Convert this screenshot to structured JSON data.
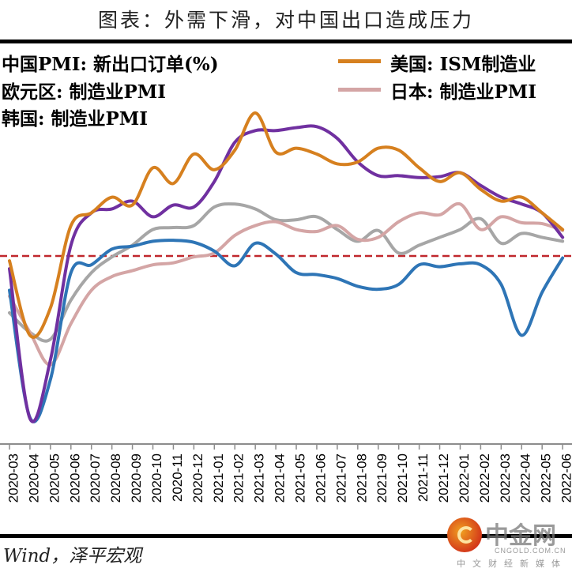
{
  "title": "图表：外需下滑，对中国出口造成压力",
  "source": "Wind，泽平宏观",
  "watermark": {
    "name": "中金网",
    "domain": "CNGOLD.COM.CN",
    "tagline": "中文财经新媒体"
  },
  "chart_data": {
    "type": "line",
    "title": "图表：外需下滑，对中国出口造成压力",
    "xlabel": "",
    "ylabel": "",
    "ylim": [
      30,
      70
    ],
    "grid": false,
    "legend_position": "top",
    "reference_line": {
      "value": 50,
      "style": "dashed",
      "color": "#c0272d"
    },
    "x": [
      "2020-03",
      "2020-04",
      "2020-05",
      "2020-06",
      "2020-07",
      "2020-08",
      "2020-09",
      "2020-10",
      "2020-11",
      "2020-12",
      "2021-01",
      "2021-02",
      "2021-03",
      "2021-04",
      "2021-05",
      "2021-06",
      "2021-07",
      "2021-08",
      "2021-09",
      "2021-10",
      "2021-11",
      "2021-12",
      "2022-01",
      "2022-02",
      "2022-03",
      "2022-04",
      "2022-05",
      "2022-06"
    ],
    "series": [
      {
        "name": "中国PMI: 新出口订单(%)",
        "color": "#2e75b6",
        "values": [
          46.5,
          33.5,
          37.4,
          48.3,
          49.1,
          50.7,
          51.0,
          51.5,
          51.6,
          51.4,
          50.5,
          49.0,
          51.3,
          50.2,
          48.3,
          48.1,
          47.7,
          46.9,
          46.6,
          47.1,
          49.1,
          48.9,
          49.2,
          49.1,
          47.1,
          41.9,
          46.3,
          49.8
        ]
      },
      {
        "name": "美国: ISM制造业PMI",
        "color": "#d6801f",
        "values": [
          49.5,
          41.9,
          44.7,
          53.1,
          54.4,
          56.0,
          55.2,
          59.0,
          57.4,
          60.4,
          58.8,
          60.8,
          64.6,
          60.6,
          61.0,
          60.4,
          59.4,
          59.6,
          61.0,
          60.8,
          59.0,
          57.6,
          58.5,
          56.8,
          55.6,
          56.0,
          54.4,
          52.7
        ]
      },
      {
        "name": "欧元区: 制造业PMI",
        "color": "#7030a0",
        "values": [
          48.7,
          33.4,
          39.4,
          51.1,
          54.4,
          54.8,
          55.6,
          54.0,
          55.2,
          55.0,
          57.6,
          61.6,
          62.8,
          62.8,
          63.1,
          63.2,
          62.0,
          59.6,
          58.2,
          58.2,
          58.0,
          58.1,
          58.5,
          57.2,
          56.0,
          55.3,
          54.4,
          51.9
        ]
      },
      {
        "name": "日本: 制造业PMI",
        "color": "#d4a5a5",
        "values": [
          45.9,
          42.2,
          38.9,
          43.1,
          46.5,
          47.9,
          48.5,
          49.1,
          49.3,
          49.9,
          50.3,
          52.1,
          53.1,
          53.5,
          52.7,
          52.5,
          53.1,
          51.7,
          51.9,
          53.5,
          54.4,
          54.2,
          55.3,
          52.7,
          54.0,
          53.4,
          53.3,
          52.6
        ]
      },
      {
        "name": "韩国: 制造业PMI",
        "color": "#a6a6a6",
        "values": [
          44.2,
          42.2,
          41.5,
          45.5,
          48.3,
          49.9,
          51.1,
          52.7,
          52.9,
          53.1,
          55.0,
          55.3,
          54.8,
          53.7,
          53.7,
          54.0,
          52.7,
          51.5,
          52.6,
          50.3,
          51.1,
          51.9,
          52.7,
          53.8,
          51.3,
          52.3,
          51.9,
          51.5
        ]
      }
    ]
  },
  "legend": {
    "left": [
      "中国PMI: 新出口订单(%)",
      "欧元区: 制造业PMI",
      "韩国: 制造业PMI"
    ],
    "right": [
      "美国: ISM制造业",
      "日本: 制造业PMI"
    ]
  }
}
